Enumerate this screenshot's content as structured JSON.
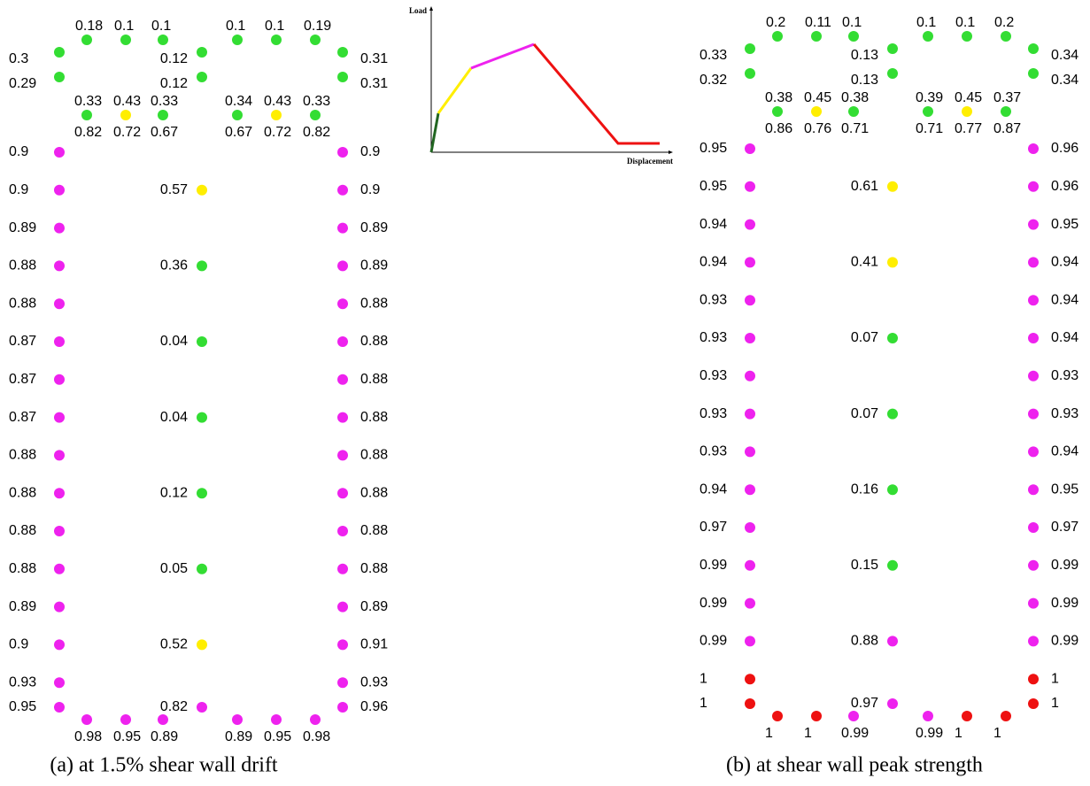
{
  "panels": [
    {
      "caption": "(a) at 1.5% shear wall drift",
      "top": [
        {
          "label": "0.18",
          "color": "#33dd33"
        },
        {
          "label": "0.1",
          "color": "#33dd33"
        },
        {
          "label": "0.1",
          "color": "#33dd33"
        },
        {
          "label": "0.1",
          "color": "#33dd33"
        },
        {
          "label": "0.1",
          "color": "#33dd33"
        },
        {
          "label": "0.19",
          "color": "#33dd33"
        }
      ],
      "flange_left": [
        {
          "label": "0.3",
          "color": "#33dd33"
        },
        {
          "label": "0.29",
          "color": "#33dd33"
        }
      ],
      "flange_middle": [
        {
          "label": "0.12",
          "color": "#33dd33"
        },
        {
          "label": "0.12",
          "color": "#33dd33"
        }
      ],
      "flange_right": [
        {
          "label": "0.31",
          "color": "#33dd33"
        },
        {
          "label": "0.31",
          "color": "#33dd33"
        }
      ],
      "inner": [
        {
          "labels": [
            "0.33",
            "0.82"
          ],
          "color": "#33dd33"
        },
        {
          "labels": [
            "0.43",
            "0.72"
          ],
          "color": "#ffee00"
        },
        {
          "labels": [
            "0.33",
            "0.67"
          ],
          "color": "#33dd33"
        },
        {
          "labels": [
            "0.34",
            "0.67"
          ],
          "color": "#33dd33"
        },
        {
          "labels": [
            "0.43",
            "0.72"
          ],
          "color": "#ffee00"
        },
        {
          "labels": [
            "0.33",
            "0.82"
          ],
          "color": "#33dd33"
        }
      ],
      "web_left": [
        {
          "label": "0.9",
          "color": "#ee22ee"
        },
        {
          "label": "0.9",
          "color": "#ee22ee"
        },
        {
          "label": "0.89",
          "color": "#ee22ee"
        },
        {
          "label": "0.88",
          "color": "#ee22ee"
        },
        {
          "label": "0.88",
          "color": "#ee22ee"
        },
        {
          "label": "0.87",
          "color": "#ee22ee"
        },
        {
          "label": "0.87",
          "color": "#ee22ee"
        },
        {
          "label": "0.87",
          "color": "#ee22ee"
        },
        {
          "label": "0.88",
          "color": "#ee22ee"
        },
        {
          "label": "0.88",
          "color": "#ee22ee"
        },
        {
          "label": "0.88",
          "color": "#ee22ee"
        },
        {
          "label": "0.88",
          "color": "#ee22ee"
        },
        {
          "label": "0.89",
          "color": "#ee22ee"
        },
        {
          "label": "0.9",
          "color": "#ee22ee"
        },
        {
          "label": "0.93",
          "color": "#ee22ee"
        },
        {
          "label": "0.95",
          "color": "#ee22ee"
        }
      ],
      "web_middle": [
        {
          "label": "0.57",
          "color": "#ffee00"
        },
        {
          "label": "0.36",
          "color": "#33dd33"
        },
        {
          "label": "0.04",
          "color": "#33dd33"
        },
        {
          "label": "0.04",
          "color": "#33dd33"
        },
        {
          "label": "0.12",
          "color": "#33dd33"
        },
        {
          "label": "0.05",
          "color": "#33dd33"
        },
        {
          "label": "0.52",
          "color": "#ffee00"
        },
        {
          "label": "0.82",
          "color": "#ee22ee"
        }
      ],
      "web_right": [
        {
          "label": "0.9",
          "color": "#ee22ee"
        },
        {
          "label": "0.9",
          "color": "#ee22ee"
        },
        {
          "label": "0.89",
          "color": "#ee22ee"
        },
        {
          "label": "0.89",
          "color": "#ee22ee"
        },
        {
          "label": "0.88",
          "color": "#ee22ee"
        },
        {
          "label": "0.88",
          "color": "#ee22ee"
        },
        {
          "label": "0.88",
          "color": "#ee22ee"
        },
        {
          "label": "0.88",
          "color": "#ee22ee"
        },
        {
          "label": "0.88",
          "color": "#ee22ee"
        },
        {
          "label": "0.88",
          "color": "#ee22ee"
        },
        {
          "label": "0.88",
          "color": "#ee22ee"
        },
        {
          "label": "0.88",
          "color": "#ee22ee"
        },
        {
          "label": "0.89",
          "color": "#ee22ee"
        },
        {
          "label": "0.91",
          "color": "#ee22ee"
        },
        {
          "label": "0.93",
          "color": "#ee22ee"
        },
        {
          "label": "0.96",
          "color": "#ee22ee"
        }
      ],
      "bottom": [
        {
          "label": "0.98",
          "color": "#ee22ee"
        },
        {
          "label": "0.95",
          "color": "#ee22ee"
        },
        {
          "label": "0.89",
          "color": "#ee22ee"
        },
        {
          "label": "0.89",
          "color": "#ee22ee"
        },
        {
          "label": "0.95",
          "color": "#ee22ee"
        },
        {
          "label": "0.98",
          "color": "#ee22ee"
        }
      ]
    },
    {
      "caption": "(b) at shear wall peak strength",
      "top": [
        {
          "label": "0.2",
          "color": "#33dd33"
        },
        {
          "label": "0.11",
          "color": "#33dd33"
        },
        {
          "label": "0.1",
          "color": "#33dd33"
        },
        {
          "label": "0.1",
          "color": "#33dd33"
        },
        {
          "label": "0.1",
          "color": "#33dd33"
        },
        {
          "label": "0.2",
          "color": "#33dd33"
        }
      ],
      "flange_left": [
        {
          "label": "0.33",
          "color": "#33dd33"
        },
        {
          "label": "0.32",
          "color": "#33dd33"
        }
      ],
      "flange_middle": [
        {
          "label": "0.13",
          "color": "#33dd33"
        },
        {
          "label": "0.13",
          "color": "#33dd33"
        }
      ],
      "flange_right": [
        {
          "label": "0.34",
          "color": "#33dd33"
        },
        {
          "label": "0.34",
          "color": "#33dd33"
        }
      ],
      "inner": [
        {
          "labels": [
            "0.38",
            "0.86"
          ],
          "color": "#33dd33"
        },
        {
          "labels": [
            "0.45",
            "0.76"
          ],
          "color": "#ffee00"
        },
        {
          "labels": [
            "0.38",
            "0.71"
          ],
          "color": "#33dd33"
        },
        {
          "labels": [
            "0.39",
            "0.71"
          ],
          "color": "#33dd33"
        },
        {
          "labels": [
            "0.45",
            "0.77"
          ],
          "color": "#ffee00"
        },
        {
          "labels": [
            "0.37",
            "0.87"
          ],
          "color": "#33dd33"
        }
      ],
      "web_left": [
        {
          "label": "0.95",
          "color": "#ee22ee"
        },
        {
          "label": "0.95",
          "color": "#ee22ee"
        },
        {
          "label": "0.94",
          "color": "#ee22ee"
        },
        {
          "label": "0.94",
          "color": "#ee22ee"
        },
        {
          "label": "0.93",
          "color": "#ee22ee"
        },
        {
          "label": "0.93",
          "color": "#ee22ee"
        },
        {
          "label": "0.93",
          "color": "#ee22ee"
        },
        {
          "label": "0.93",
          "color": "#ee22ee"
        },
        {
          "label": "0.93",
          "color": "#ee22ee"
        },
        {
          "label": "0.94",
          "color": "#ee22ee"
        },
        {
          "label": "0.97",
          "color": "#ee22ee"
        },
        {
          "label": "0.99",
          "color": "#ee22ee"
        },
        {
          "label": "0.99",
          "color": "#ee22ee"
        },
        {
          "label": "0.99",
          "color": "#ee22ee"
        },
        {
          "label": "1",
          "color": "#ee1111"
        },
        {
          "label": "1",
          "color": "#ee1111"
        }
      ],
      "web_middle": [
        {
          "label": "0.61",
          "color": "#ffee00"
        },
        {
          "label": "0.41",
          "color": "#ffee00"
        },
        {
          "label": "0.07",
          "color": "#33dd33"
        },
        {
          "label": "0.07",
          "color": "#33dd33"
        },
        {
          "label": "0.16",
          "color": "#33dd33"
        },
        {
          "label": "0.15",
          "color": "#33dd33"
        },
        {
          "label": "0.88",
          "color": "#ee22ee"
        },
        {
          "label": "0.97",
          "color": "#ee22ee"
        }
      ],
      "web_right": [
        {
          "label": "0.96",
          "color": "#ee22ee"
        },
        {
          "label": "0.96",
          "color": "#ee22ee"
        },
        {
          "label": "0.95",
          "color": "#ee22ee"
        },
        {
          "label": "0.94",
          "color": "#ee22ee"
        },
        {
          "label": "0.94",
          "color": "#ee22ee"
        },
        {
          "label": "0.94",
          "color": "#ee22ee"
        },
        {
          "label": "0.93",
          "color": "#ee22ee"
        },
        {
          "label": "0.93",
          "color": "#ee22ee"
        },
        {
          "label": "0.94",
          "color": "#ee22ee"
        },
        {
          "label": "0.95",
          "color": "#ee22ee"
        },
        {
          "label": "0.97",
          "color": "#ee22ee"
        },
        {
          "label": "0.99",
          "color": "#ee22ee"
        },
        {
          "label": "0.99",
          "color": "#ee22ee"
        },
        {
          "label": "0.99",
          "color": "#ee22ee"
        },
        {
          "label": "1",
          "color": "#ee1111"
        },
        {
          "label": "1",
          "color": "#ee1111"
        }
      ],
      "bottom": [
        {
          "label": "1",
          "color": "#ee1111"
        },
        {
          "label": "1",
          "color": "#ee1111"
        },
        {
          "label": "0.99",
          "color": "#ee22ee"
        },
        {
          "label": "0.99",
          "color": "#ee22ee"
        },
        {
          "label": "1",
          "color": "#ee1111"
        },
        {
          "label": "1",
          "color": "#ee1111"
        }
      ]
    }
  ],
  "inset": {
    "y_label": "Load",
    "x_label": "Displacement"
  }
}
